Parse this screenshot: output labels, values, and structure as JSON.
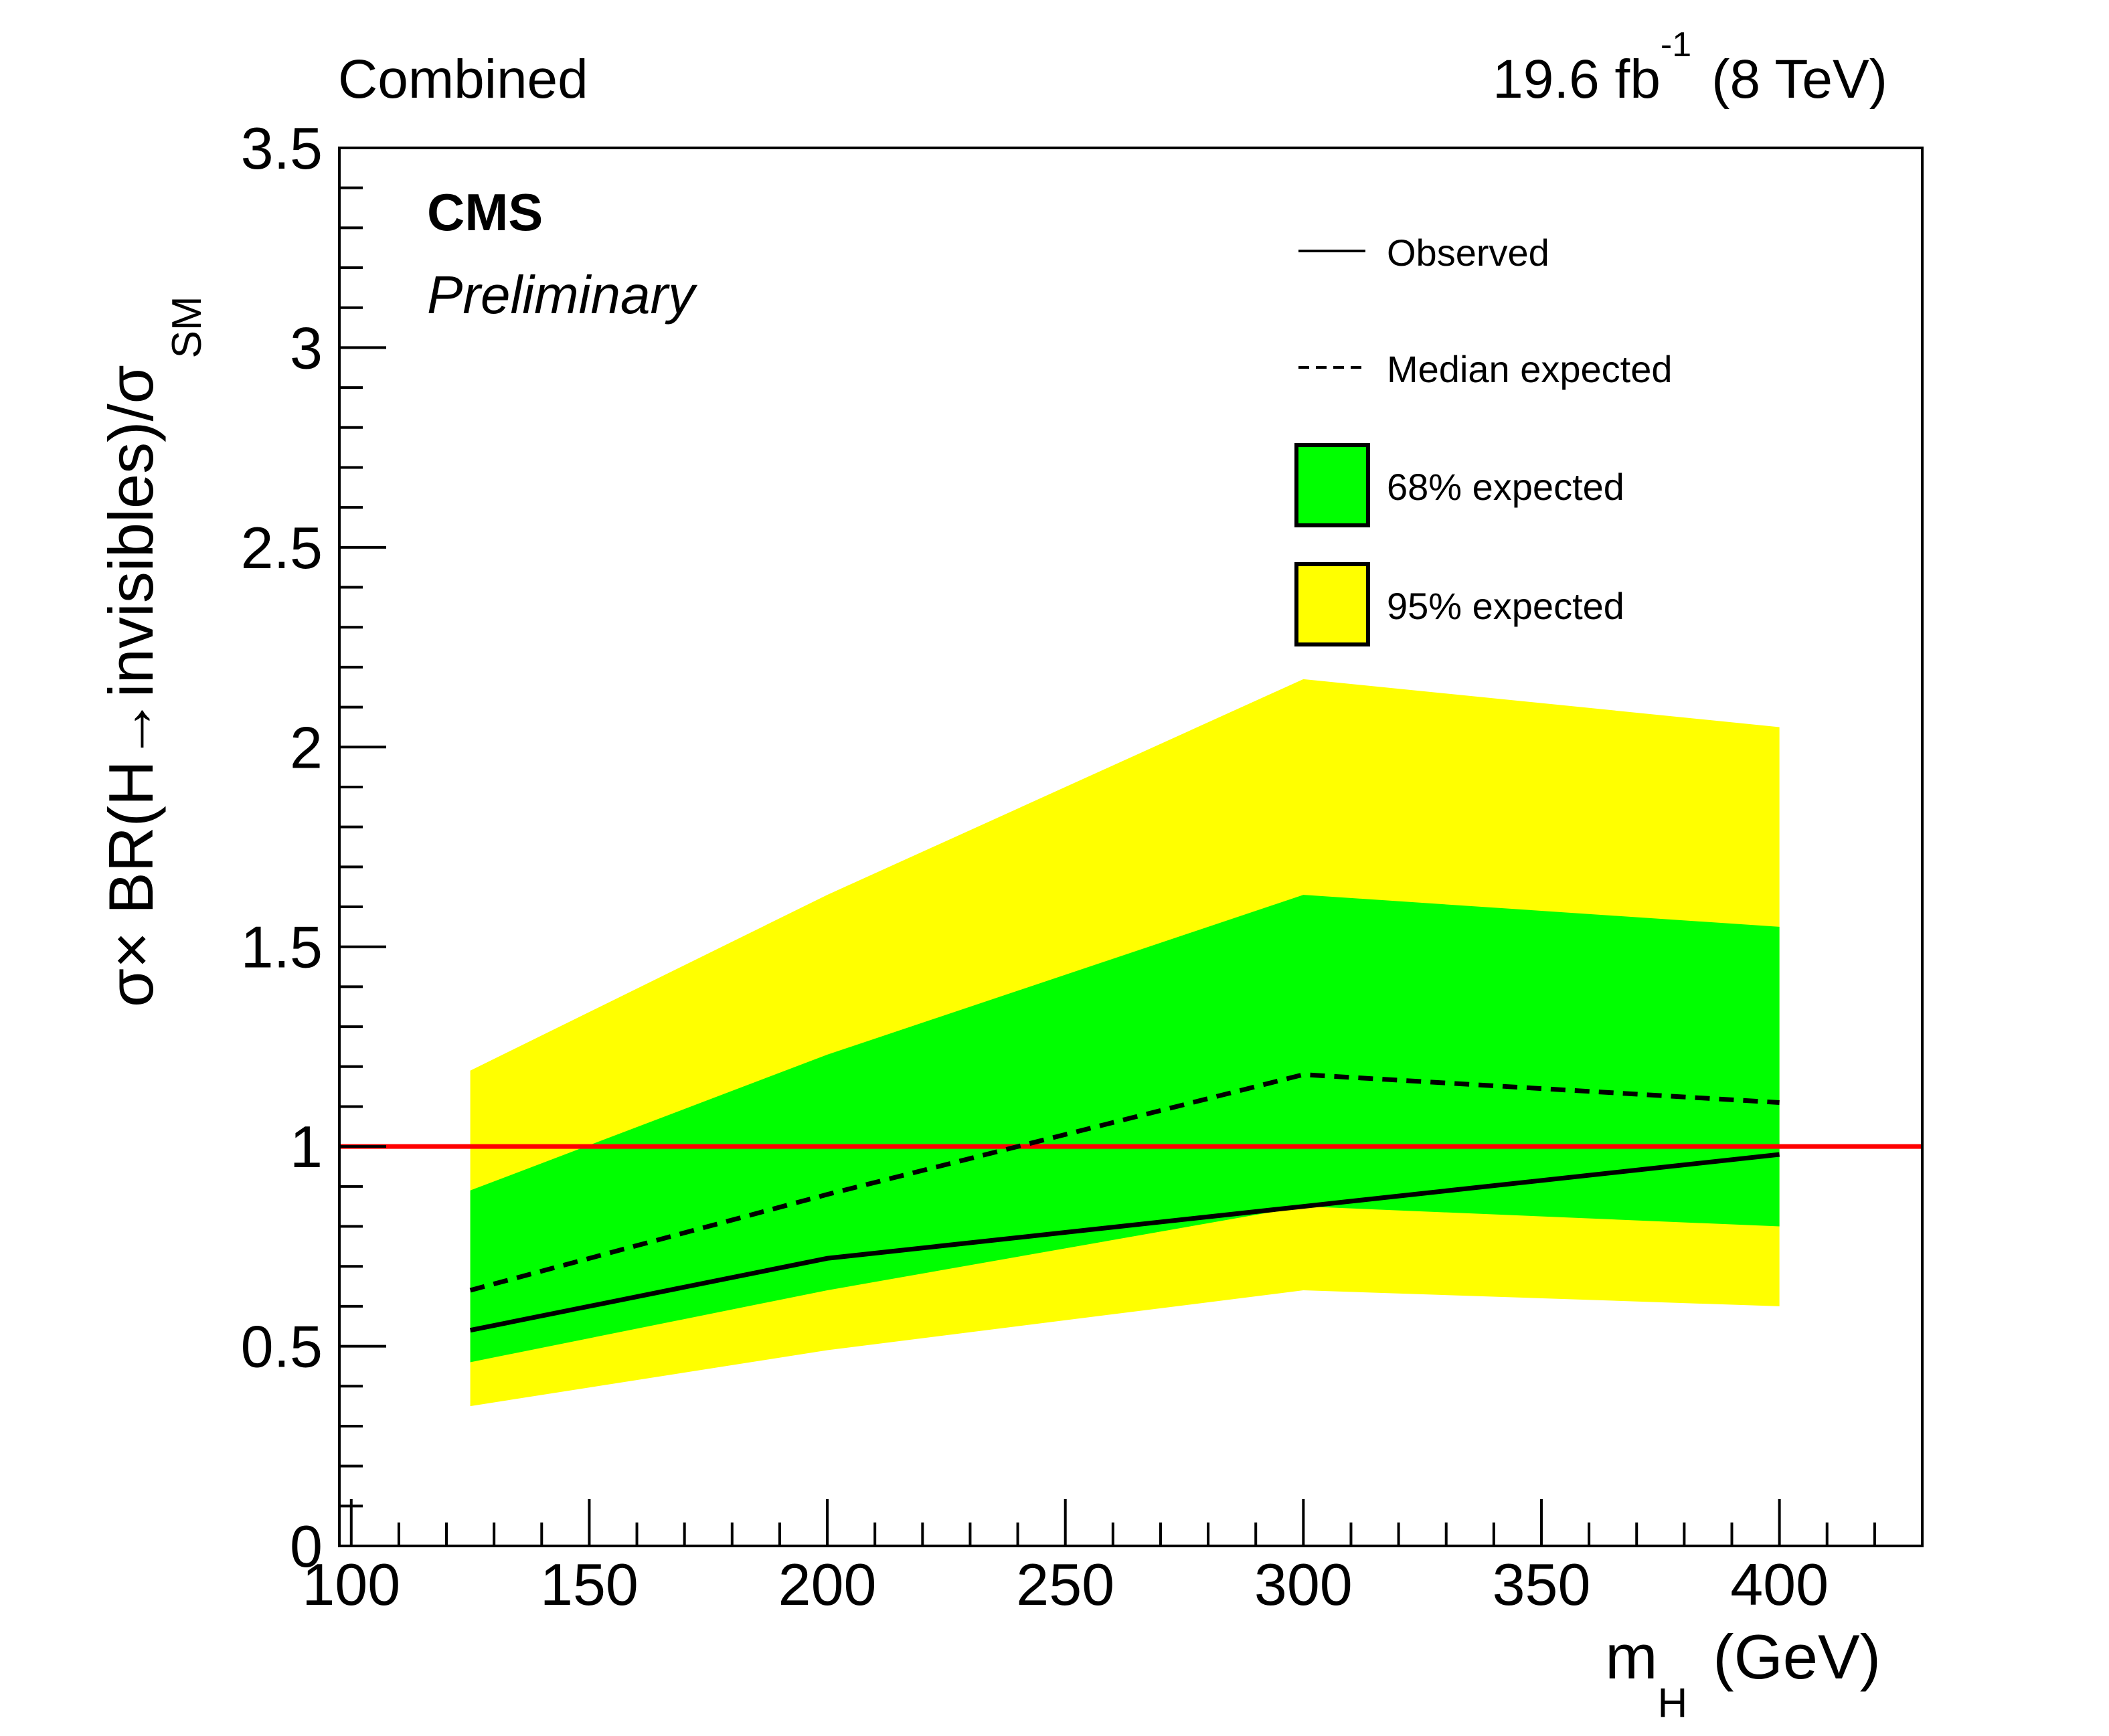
{
  "chart_data": {
    "type": "line",
    "top_left_label": "Combined",
    "lumi": {
      "value": "19.6 fb",
      "exponent": "-1",
      "energy": "(8 TeV)"
    },
    "cms_label": "CMS",
    "cms_sublabel": "Preliminary",
    "xlabel": {
      "main": "m",
      "sub": "H",
      "unit": "(GeV)"
    },
    "ylabel": {
      "main": "σ× BR(H→invisibles)/σ",
      "sub": "SM"
    },
    "xlim": [
      97.5,
      430
    ],
    "ylim": [
      0,
      3.5
    ],
    "x_ticks": [
      100,
      150,
      200,
      250,
      300,
      350,
      400
    ],
    "x_tick_labels": [
      "100",
      "150",
      "200",
      "250",
      "300",
      "350",
      "400"
    ],
    "y_ticks": [
      0,
      0.5,
      1,
      1.5,
      2,
      2.5,
      3,
      3.5
    ],
    "y_tick_labels": [
      "0",
      "0.5",
      "1",
      "1.5",
      "2",
      "2.5",
      "3",
      "3.5"
    ],
    "x": [
      125,
      200,
      300,
      400
    ],
    "series": [
      {
        "name": "Observed",
        "style": "solid",
        "color": "#000000",
        "values": [
          0.54,
          0.72,
          0.85,
          0.98
        ]
      },
      {
        "name": "Median expected",
        "style": "dashed",
        "color": "#000000",
        "values": [
          0.64,
          0.88,
          1.18,
          1.11
        ]
      }
    ],
    "bands": [
      {
        "name": "95% expected",
        "color": "#ffff00",
        "lower": [
          0.35,
          0.49,
          0.64,
          0.6
        ],
        "upper": [
          1.19,
          1.63,
          2.17,
          2.05
        ]
      },
      {
        "name": "68% expected",
        "color": "#00ff00",
        "lower": [
          0.46,
          0.64,
          0.85,
          0.8
        ],
        "upper": [
          0.89,
          1.23,
          1.63,
          1.55
        ]
      }
    ],
    "reference_line": {
      "y": 1,
      "color": "#ff0000"
    },
    "legend": {
      "placement": "top-right",
      "entries": [
        {
          "label": "Observed",
          "kind": "line-solid"
        },
        {
          "label": "Median expected",
          "kind": "line-dashed"
        },
        {
          "label": "68% expected",
          "kind": "box",
          "color": "#00ff00"
        },
        {
          "label": "95% expected",
          "kind": "box",
          "color": "#ffff00"
        }
      ]
    },
    "grid": false
  }
}
